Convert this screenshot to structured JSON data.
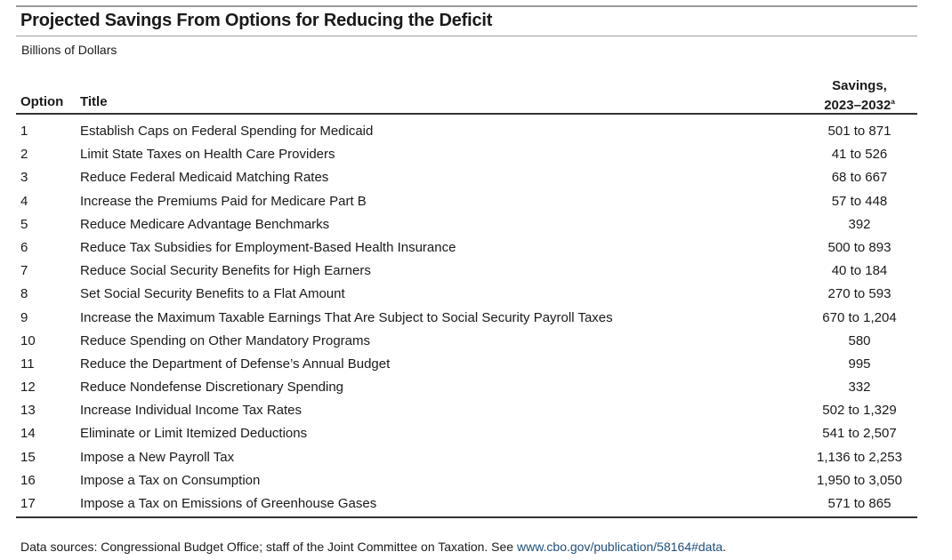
{
  "title": "Projected Savings From Options for Reducing the Deficit",
  "subtitle": "Billions of Dollars",
  "headers": {
    "option": "Option",
    "title": "Title",
    "savings_line1": "Savings,",
    "savings_line2": "2023–2032",
    "savings_note": "a"
  },
  "rows": [
    {
      "option": "1",
      "title": "Establish Caps on Federal Spending for Medicaid",
      "savings": "501 to 871"
    },
    {
      "option": "2",
      "title": "Limit State Taxes on Health Care Providers",
      "savings": "41 to 526"
    },
    {
      "option": "3",
      "title": "Reduce Federal Medicaid Matching Rates",
      "savings": "68 to 667"
    },
    {
      "option": "4",
      "title": "Increase the Premiums Paid for Medicare Part B",
      "savings": "57 to 448"
    },
    {
      "option": "5",
      "title": "Reduce Medicare Advantage Benchmarks",
      "savings": "392"
    },
    {
      "option": "6",
      "title": "Reduce Tax Subsidies for Employment-Based Health Insurance",
      "savings": "500 to 893"
    },
    {
      "option": "7",
      "title": "Reduce Social Security Benefits for High Earners",
      "savings": "40 to 184"
    },
    {
      "option": "8",
      "title": "Set Social Security Benefits to a Flat Amount",
      "savings": "270 to 593"
    },
    {
      "option": "9",
      "title": "Increase the Maximum Taxable Earnings That Are Subject to Social Security Payroll Taxes",
      "savings": "670 to 1,204"
    },
    {
      "option": "10",
      "title": "Reduce Spending on Other Mandatory Programs",
      "savings": "580"
    },
    {
      "option": "11",
      "title": "Reduce the Department of Defense’s Annual Budget",
      "savings": "995"
    },
    {
      "option": "12",
      "title": "Reduce Nondefense Discretionary Spending",
      "savings": "332"
    },
    {
      "option": "13",
      "title": "Increase Individual Income Tax Rates",
      "savings": "502 to 1,329"
    },
    {
      "option": "14",
      "title": "Eliminate or Limit Itemized Deductions",
      "savings": "541 to 2,507"
    },
    {
      "option": "15",
      "title": "Impose a New Payroll Tax",
      "savings": "1,136 to 2,253"
    },
    {
      "option": "16",
      "title": "Impose a Tax on Consumption",
      "savings": "1,950 to 3,050"
    },
    {
      "option": "17",
      "title": "Impose a Tax on Emissions of Greenhouse Gases",
      "savings": "571 to 865"
    }
  ],
  "footnote": {
    "text": "Data sources: Congressional Budget Office; staff of the Joint Committee on Taxation. See ",
    "link": "www.cbo.gov/publication/58164#data",
    "end": "."
  },
  "colors": {
    "link": "#1f4e79",
    "rule_heavy": "#333333",
    "rule_light": "#9a9a9a"
  }
}
